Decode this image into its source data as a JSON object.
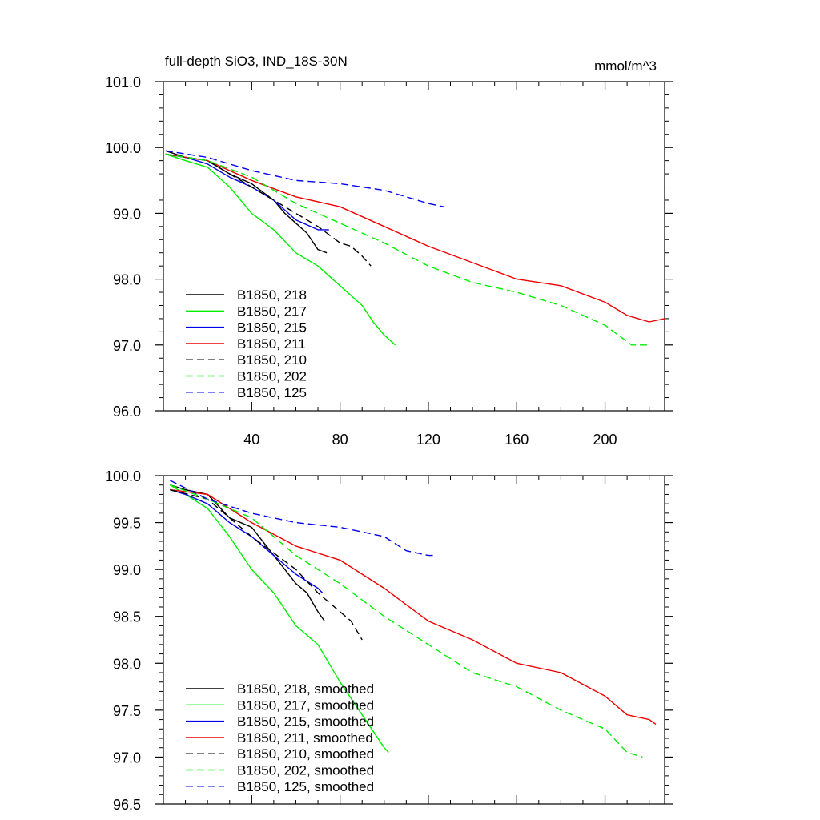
{
  "chart_data": [
    {
      "type": "line",
      "title": "full-depth SiO3, IND_18S-30N",
      "units": "mmol/m^3",
      "xlabel": "",
      "ylabel": "",
      "xlim": [
        0,
        227
      ],
      "ylim": [
        96.0,
        101.0
      ],
      "xticks": [
        40,
        80,
        120,
        160,
        200
      ],
      "xtick_labels": [
        "40",
        "80",
        "120",
        "160",
        "200"
      ],
      "yticks": [
        96.0,
        97.0,
        98.0,
        99.0,
        100.0,
        101.0
      ],
      "ytick_labels": [
        "96.0",
        "97.0",
        "98.0",
        "99.0",
        "100.0",
        "101.0"
      ],
      "legend_position": "lower-left",
      "series": [
        {
          "name": "B1850, 218",
          "color": "#000000",
          "dash": "solid",
          "x": [
            1,
            10,
            20,
            30,
            40,
            50,
            55,
            60,
            65,
            70,
            74
          ],
          "y": [
            99.95,
            99.85,
            99.8,
            99.6,
            99.45,
            99.2,
            99.0,
            98.85,
            98.7,
            98.45,
            98.4
          ]
        },
        {
          "name": "B1850, 217",
          "color": "#00ee00",
          "dash": "solid",
          "x": [
            1,
            10,
            20,
            30,
            40,
            50,
            60,
            70,
            80,
            90,
            95,
            100,
            105
          ],
          "y": [
            99.9,
            99.8,
            99.7,
            99.4,
            99.0,
            98.75,
            98.4,
            98.2,
            97.9,
            97.6,
            97.35,
            97.15,
            97.0
          ]
        },
        {
          "name": "B1850, 215",
          "color": "#0000ee",
          "dash": "solid",
          "x": [
            1,
            10,
            20,
            30,
            40,
            50,
            60,
            70,
            75
          ],
          "y": [
            99.9,
            99.85,
            99.75,
            99.55,
            99.4,
            99.2,
            98.9,
            98.75,
            98.75
          ]
        },
        {
          "name": "B1850, 211",
          "color": "#ee0000",
          "dash": "solid",
          "x": [
            1,
            20,
            40,
            60,
            80,
            100,
            120,
            140,
            160,
            180,
            200,
            210,
            220,
            227
          ],
          "y": [
            99.9,
            99.8,
            99.5,
            99.25,
            99.1,
            98.8,
            98.5,
            98.25,
            98.0,
            97.9,
            97.65,
            97.45,
            97.35,
            97.4
          ]
        },
        {
          "name": "B1850, 210",
          "color": "#000000",
          "dash": "dashed",
          "x": [
            1,
            20,
            40,
            60,
            70,
            80,
            85,
            90,
            94
          ],
          "y": [
            99.9,
            99.8,
            99.4,
            99.0,
            98.8,
            98.55,
            98.5,
            98.35,
            98.2
          ]
        },
        {
          "name": "B1850, 202",
          "color": "#00ee00",
          "dash": "dashed",
          "x": [
            1,
            20,
            40,
            60,
            80,
            100,
            120,
            140,
            160,
            180,
            200,
            212,
            220
          ],
          "y": [
            99.9,
            99.8,
            99.55,
            99.15,
            98.85,
            98.55,
            98.2,
            97.95,
            97.8,
            97.6,
            97.3,
            97.0,
            97.0
          ]
        },
        {
          "name": "B1850, 125",
          "color": "#0000ee",
          "dash": "dashed",
          "x": [
            1,
            20,
            40,
            60,
            80,
            100,
            110,
            120,
            127
          ],
          "y": [
            99.95,
            99.85,
            99.65,
            99.5,
            99.45,
            99.35,
            99.25,
            99.15,
            99.1
          ]
        }
      ]
    },
    {
      "type": "line",
      "title": "",
      "xlabel": "",
      "ylabel": "",
      "xlim": [
        0,
        227
      ],
      "ylim": [
        96.5,
        100.0
      ],
      "xticks": [
        40,
        80,
        120,
        160,
        200
      ],
      "yticks": [
        96.5,
        97.0,
        97.5,
        98.0,
        98.5,
        99.0,
        99.5,
        100.0
      ],
      "ytick_labels": [
        "96.5",
        "97.0",
        "97.5",
        "98.0",
        "98.5",
        "99.0",
        "99.5",
        "100.0"
      ],
      "legend_position": "lower-left",
      "series": [
        {
          "name": "B1850, 218, smoothed",
          "color": "#000000",
          "dash": "solid",
          "x": [
            3,
            10,
            20,
            30,
            40,
            50,
            55,
            60,
            65,
            70,
            73
          ],
          "y": [
            99.9,
            99.85,
            99.8,
            99.55,
            99.45,
            99.15,
            99.0,
            98.85,
            98.75,
            98.55,
            98.45
          ]
        },
        {
          "name": "B1850, 217, smoothed",
          "color": "#00ee00",
          "dash": "solid",
          "x": [
            3,
            10,
            20,
            30,
            40,
            50,
            60,
            65,
            70,
            80,
            90,
            100,
            102
          ],
          "y": [
            99.9,
            99.8,
            99.65,
            99.35,
            99.0,
            98.75,
            98.4,
            98.3,
            98.2,
            97.8,
            97.45,
            97.1,
            97.05
          ]
        },
        {
          "name": "B1850, 215, smoothed",
          "color": "#0000ee",
          "dash": "solid",
          "x": [
            3,
            10,
            20,
            30,
            40,
            50,
            60,
            70,
            72
          ],
          "y": [
            99.85,
            99.8,
            99.7,
            99.5,
            99.35,
            99.15,
            98.95,
            98.8,
            98.75
          ]
        },
        {
          "name": "B1850, 211, smoothed",
          "color": "#ee0000",
          "dash": "solid",
          "x": [
            3,
            20,
            40,
            60,
            80,
            100,
            120,
            140,
            160,
            180,
            200,
            210,
            220,
            223
          ],
          "y": [
            99.85,
            99.8,
            99.5,
            99.25,
            99.1,
            98.8,
            98.45,
            98.25,
            98.0,
            97.9,
            97.65,
            97.45,
            97.4,
            97.35
          ]
        },
        {
          "name": "B1850, 210, smoothed",
          "color": "#000000",
          "dash": "dashed",
          "x": [
            3,
            20,
            40,
            60,
            70,
            80,
            85,
            90
          ],
          "y": [
            99.85,
            99.75,
            99.35,
            99.0,
            98.75,
            98.55,
            98.45,
            98.25
          ]
        },
        {
          "name": "B1850, 202, smoothed",
          "color": "#00ee00",
          "dash": "dashed",
          "x": [
            3,
            20,
            40,
            60,
            80,
            100,
            120,
            140,
            160,
            180,
            200,
            210,
            217
          ],
          "y": [
            99.9,
            99.75,
            99.55,
            99.15,
            98.85,
            98.5,
            98.2,
            97.9,
            97.75,
            97.5,
            97.3,
            97.05,
            97.0
          ]
        },
        {
          "name": "B1850, 125, smoothed",
          "color": "#0000ee",
          "dash": "dashed",
          "x": [
            3,
            20,
            40,
            60,
            80,
            100,
            110,
            120,
            123
          ],
          "y": [
            99.95,
            99.75,
            99.6,
            99.5,
            99.45,
            99.35,
            99.2,
            99.15,
            99.15
          ]
        }
      ]
    }
  ]
}
